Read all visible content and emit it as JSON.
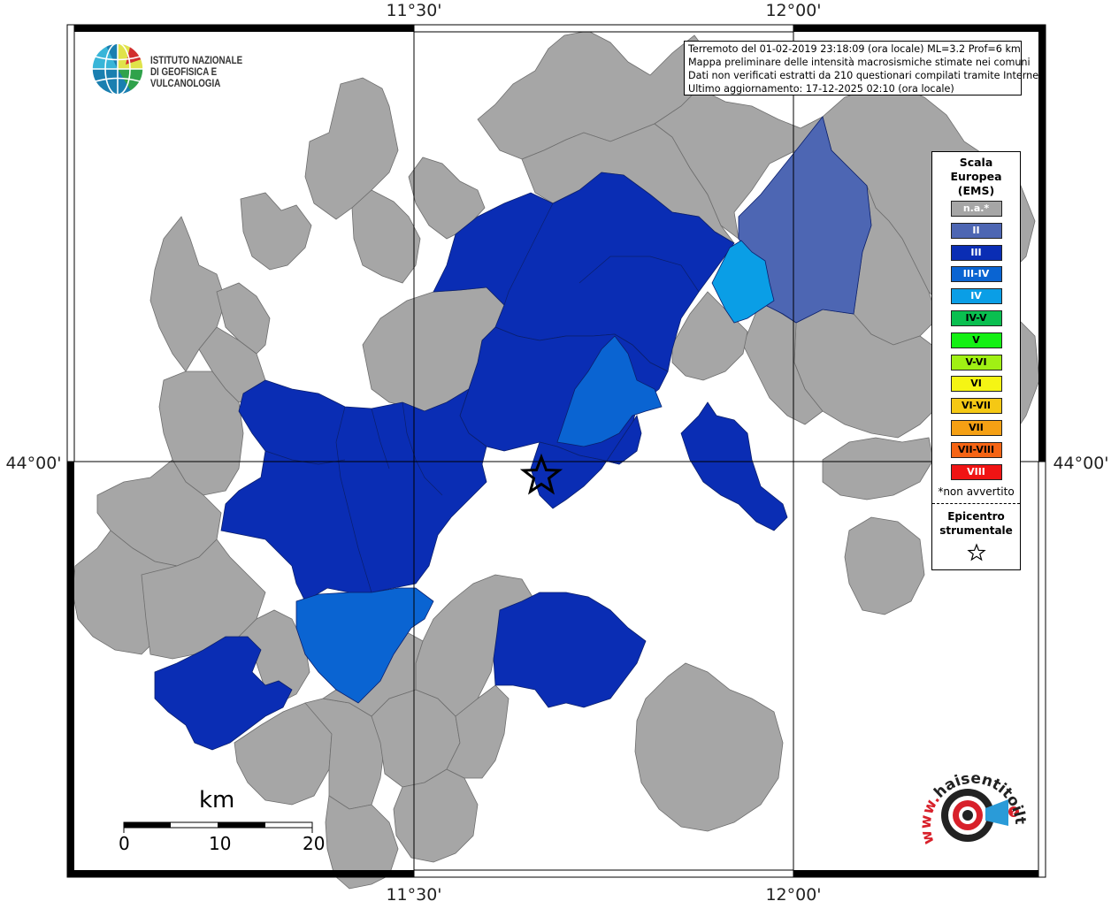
{
  "map": {
    "ticks": {
      "lon_left": "11°30'",
      "lon_right": "12°00'",
      "lat": "44°00'"
    },
    "colors": {
      "not_available": "#a6a6a6",
      "II": "#4d66b3",
      "III": "#0a2db4",
      "III-IV": "#0a64d2",
      "IV": "#0a9ee6",
      "IV-V": "#0abf50",
      "V": "#14f014",
      "V-VI": "#a0f014",
      "VI": "#f5f514",
      "VI-VII": "#f5c814",
      "VII": "#f5a014",
      "VII-VIII": "#f56414",
      "VIII": "#f01414"
    }
  },
  "header": {
    "logo_line1": "ISTITUTO NAZIONALE",
    "logo_line2": "DI GEOFISICA E VULCANOLOGIA"
  },
  "info": {
    "line1": "Terremoto del 01-02-2019 23:18:09 (ora locale) ML=3.2 Prof=6 km",
    "line2": "Mappa preliminare delle intensità macrosismiche stimate nei comuni",
    "line3": "Dati non verificati estratti da 210 questionari compilati tramite Internet.",
    "line4": "Ultimo aggiornamento: 17-12-2025 02:10 (ora locale)"
  },
  "legend": {
    "title1": "Scala",
    "title2": "Europea",
    "title3": "(EMS)",
    "items": [
      {
        "label": "n.a.*",
        "color": "#a6a6a6",
        "text_color": "#ffffff"
      },
      {
        "label": "II",
        "color": "#4d66b3",
        "text_color": "#ffffff"
      },
      {
        "label": "III",
        "color": "#0a2db4",
        "text_color": "#ffffff"
      },
      {
        "label": "III-IV",
        "color": "#0a64d2",
        "text_color": "#ffffff"
      },
      {
        "label": "IV",
        "color": "#0a9ee6",
        "text_color": "#ffffff"
      },
      {
        "label": "IV-V",
        "color": "#0abf50",
        "text_color": "#000000"
      },
      {
        "label": "V",
        "color": "#14f014",
        "text_color": "#000000"
      },
      {
        "label": "V-VI",
        "color": "#a0f014",
        "text_color": "#000000"
      },
      {
        "label": "VI",
        "color": "#f5f514",
        "text_color": "#000000"
      },
      {
        "label": "VI-VII",
        "color": "#f5c814",
        "text_color": "#000000"
      },
      {
        "label": "VII",
        "color": "#f5a014",
        "text_color": "#000000"
      },
      {
        "label": "VII-VIII",
        "color": "#f56414",
        "text_color": "#000000"
      },
      {
        "label": "VIII",
        "color": "#f01414",
        "text_color": "#ffffff"
      }
    ],
    "note": "*non avvertito",
    "epicenter1": "Epicentro",
    "epicenter2": "strumentale"
  },
  "scalebar": {
    "unit": "km",
    "labels": [
      "0",
      "10",
      "20"
    ]
  },
  "footer_logo": {
    "text": "haisentitoilterremoto.it",
    "prefix": "www."
  }
}
